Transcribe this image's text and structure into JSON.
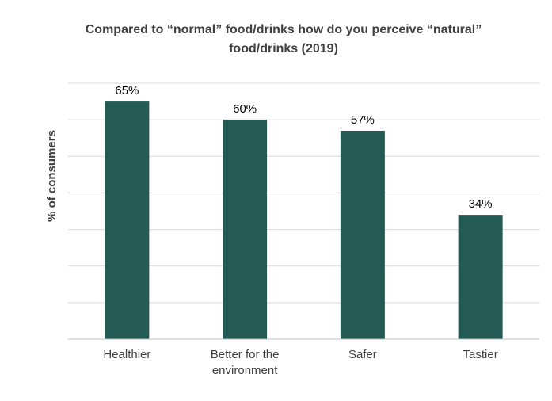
{
  "chart_data": {
    "type": "bar",
    "title_lines": [
      "Compared to “normal” food/drinks how do you perceive “natural”",
      "food/drinks (2019)"
    ],
    "xlabel": "",
    "ylabel": "% of consumers",
    "categories": [
      "Healthier",
      "Better for the environment",
      "Safer",
      "Tastier"
    ],
    "category_lines": [
      [
        "Healthier"
      ],
      [
        "Better for the",
        "environment"
      ],
      [
        "Safer"
      ],
      [
        "Tastier"
      ]
    ],
    "values": [
      65,
      60,
      57,
      34
    ],
    "data_labels": [
      "65%",
      "60%",
      "57%",
      "34%"
    ],
    "ylim": [
      0,
      70
    ],
    "grid": true,
    "colors": {
      "bar": "#245a54",
      "grid": "#d9d9d9",
      "axis": "#bfbfbf"
    }
  }
}
